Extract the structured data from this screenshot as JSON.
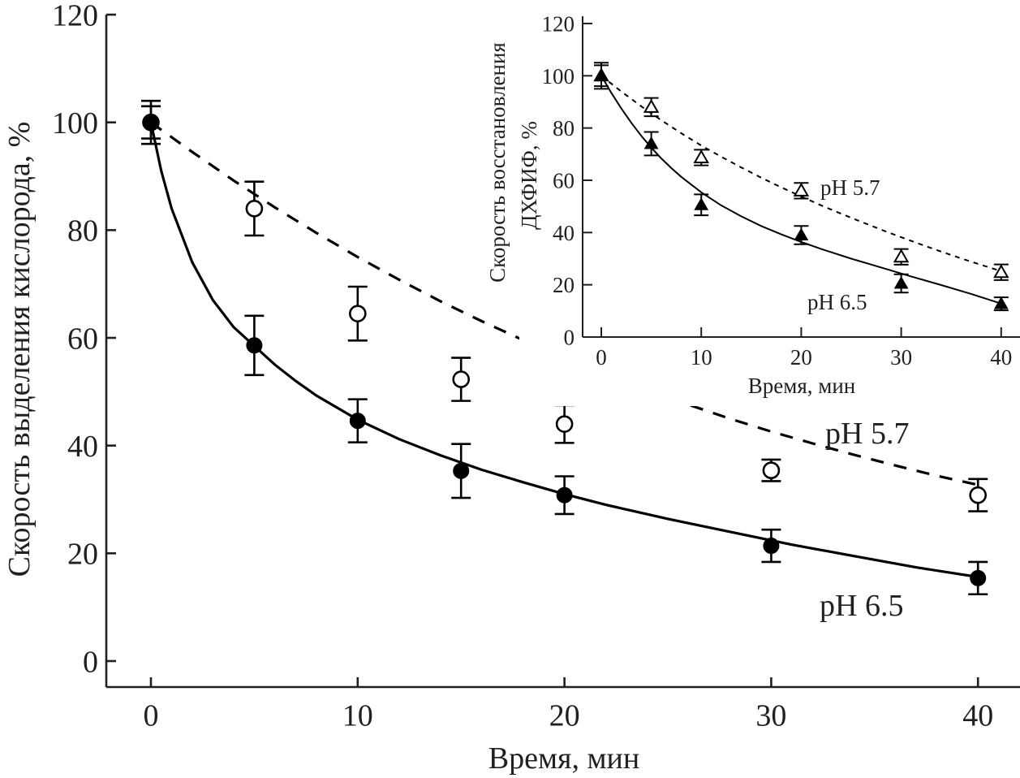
{
  "chart_data": [
    {
      "type": "scatter",
      "title": "",
      "xlabel": "Время, мин",
      "ylabel": "Скорость выделения кислорода, %",
      "xlim": [
        -2,
        42
      ],
      "ylim": [
        -5,
        120
      ],
      "xticks": [
        0,
        10,
        20,
        30,
        40
      ],
      "yticks": [
        0,
        20,
        40,
        60,
        80,
        100,
        120
      ],
      "grid": false,
      "series": [
        {
          "name": "pH 5.7",
          "marker": "open-circle",
          "line": "dashed",
          "x": [
            0,
            5,
            10,
            15,
            20,
            30,
            40
          ],
          "y": [
            100,
            84,
            64.5,
            52.3,
            44,
            35.4,
            30.8
          ],
          "err": [
            4,
            5,
            5,
            4,
            3.5,
            2,
            3
          ],
          "fit_label": "pH 5.7",
          "fit": [
            [
              0,
              100
            ],
            [
              2,
              94.5
            ],
            [
              4,
              89.2
            ],
            [
              6,
              84.2
            ],
            [
              8,
              79.5
            ],
            [
              10,
              75
            ],
            [
              12,
              70.8
            ],
            [
              14,
              66.8
            ],
            [
              16,
              63.1
            ],
            [
              18,
              59.6
            ],
            [
              20,
              56.3
            ],
            [
              22,
              53.2
            ],
            [
              24,
              50.3
            ],
            [
              26,
              47.6
            ],
            [
              28,
              45
            ],
            [
              30,
              42.6
            ],
            [
              32,
              40.4
            ],
            [
              34,
              38.3
            ],
            [
              36,
              36.3
            ],
            [
              38,
              34.4
            ],
            [
              40,
              32.7
            ]
          ]
        },
        {
          "name": "pH 6.5",
          "marker": "filled-circle",
          "line": "solid",
          "x": [
            0,
            5,
            10,
            15,
            20,
            30,
            40
          ],
          "y": [
            100,
            58.6,
            44.6,
            35.3,
            30.8,
            21.4,
            15.4
          ],
          "err": [
            3,
            5.5,
            4,
            5,
            3.5,
            3,
            3
          ],
          "fit_label": "pH 6.5",
          "fit": [
            [
              0,
              100
            ],
            [
              0.5,
              91
            ],
            [
              1,
              84
            ],
            [
              2,
              74
            ],
            [
              3,
              67
            ],
            [
              4,
              62
            ],
            [
              5,
              58.5
            ],
            [
              6,
              55
            ],
            [
              7,
              52
            ],
            [
              8,
              49.3
            ],
            [
              10,
              44.8
            ],
            [
              12,
              41.2
            ],
            [
              14,
              38.2
            ],
            [
              16,
              35.5
            ],
            [
              18,
              33.2
            ],
            [
              20,
              31
            ],
            [
              22,
              29
            ],
            [
              25,
              26.4
            ],
            [
              28,
              24
            ],
            [
              31,
              21.6
            ],
            [
              34,
              19.5
            ],
            [
              37,
              17.4
            ],
            [
              40,
              15.6
            ]
          ]
        }
      ]
    },
    {
      "type": "scatter",
      "title": "",
      "xlabel": "Время, мин",
      "ylabel": "Скорость восстановления ДХФИФ, %",
      "ylabel_lines": [
        "Скорость восстановления",
        "ДХФИФ, %"
      ],
      "xlim": [
        -2,
        42
      ],
      "ylim": [
        0,
        125
      ],
      "xticks": [
        0,
        10,
        20,
        30,
        40
      ],
      "yticks": [
        0,
        20,
        40,
        60,
        80,
        100,
        120
      ],
      "grid": false,
      "series": [
        {
          "name": "pH 5.7",
          "marker": "open-triangle",
          "line": "dotted",
          "x": [
            0,
            5,
            10,
            20,
            30,
            40
          ],
          "y": [
            100,
            88,
            68.7,
            56,
            30.7,
            24.8
          ],
          "err": [
            5,
            3.5,
            3,
            3,
            3,
            3
          ],
          "fit_label": "pH 5.7",
          "fit": [
            [
              0,
              100
            ],
            [
              2,
              94
            ],
            [
              4,
              88.3
            ],
            [
              6,
              83
            ],
            [
              8,
              78
            ],
            [
              10,
              73.3
            ],
            [
              12,
              69
            ],
            [
              14,
              64.9
            ],
            [
              16,
              61
            ],
            [
              18,
              57.3
            ],
            [
              20,
              53.8
            ],
            [
              22,
              50.4
            ],
            [
              24,
              47.2
            ],
            [
              26,
              44.1
            ],
            [
              28,
              41.1
            ],
            [
              30,
              38.2
            ],
            [
              32,
              35.4
            ],
            [
              34,
              32.7
            ],
            [
              36,
              30.1
            ],
            [
              38,
              27.6
            ],
            [
              40,
              25.2
            ]
          ]
        },
        {
          "name": "pH 6.5",
          "marker": "filled-triangle",
          "line": "solid",
          "x": [
            0,
            5,
            10,
            20,
            30,
            40
          ],
          "y": [
            100,
            74,
            50.6,
            39,
            20.5,
            12.7
          ],
          "err": [
            4,
            4.5,
            4,
            3.5,
            3.5,
            2.5
          ],
          "fit_label": "pH 6.5",
          "fit": [
            [
              0,
              100
            ],
            [
              1,
              93.5
            ],
            [
              2,
              87.5
            ],
            [
              3,
              82
            ],
            [
              4,
              77
            ],
            [
              5,
              72.5
            ],
            [
              6,
              68.4
            ],
            [
              7,
              64.7
            ],
            [
              8,
              61.3
            ],
            [
              10,
              55.4
            ],
            [
              12,
              50.4
            ],
            [
              14,
              46.2
            ],
            [
              16,
              42.5
            ],
            [
              18,
              39.3
            ],
            [
              20,
              36.4
            ],
            [
              22,
              33.7
            ],
            [
              25,
              30
            ],
            [
              28,
              26.6
            ],
            [
              31,
              23.2
            ],
            [
              34,
              19.9
            ],
            [
              37,
              16.5
            ],
            [
              40,
              12.8
            ]
          ]
        }
      ]
    }
  ]
}
